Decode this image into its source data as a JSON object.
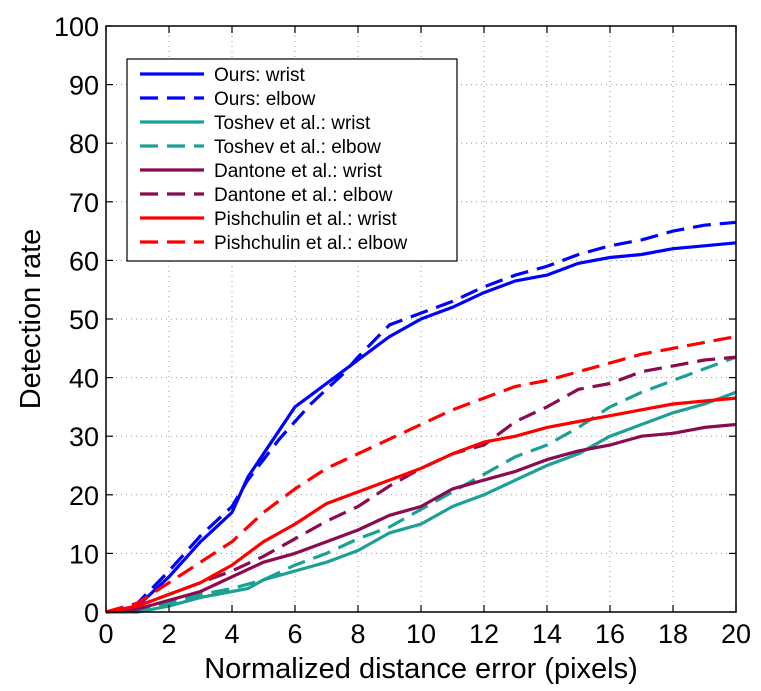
{
  "chart_data": {
    "type": "line",
    "title": "",
    "xlabel": "Normalized distance error (pixels)",
    "ylabel": "Detection rate",
    "xlim": [
      0,
      20
    ],
    "ylim": [
      0,
      100
    ],
    "xticks": [
      0,
      2,
      4,
      6,
      8,
      10,
      12,
      14,
      16,
      18,
      20
    ],
    "yticks": [
      0,
      10,
      20,
      30,
      40,
      50,
      60,
      70,
      80,
      90,
      100
    ],
    "grid": true,
    "legend_position": "top-left",
    "series": [
      {
        "name": "Ours: wrist",
        "color": "#0000ff",
        "dash": "solid",
        "x": [
          0,
          1,
          2,
          3,
          4,
          4.5,
          5,
          5.5,
          6,
          6.5,
          7,
          7.5,
          8,
          9,
          10,
          11,
          12,
          13,
          14,
          15,
          16,
          17,
          18,
          19,
          20
        ],
        "y": [
          0,
          1,
          6,
          12,
          17,
          23,
          27,
          31,
          35,
          37,
          39,
          41,
          43,
          47,
          50,
          52,
          54.5,
          56.5,
          57.5,
          59.5,
          60.5,
          61,
          62,
          62.5,
          63
        ]
      },
      {
        "name": "Ours: elbow",
        "color": "#0000ff",
        "dash": "dashed",
        "x": [
          0,
          1,
          2,
          3,
          4,
          4.5,
          5,
          5.5,
          6,
          6.5,
          7,
          7.5,
          8,
          9,
          10,
          11,
          12,
          13,
          14,
          15,
          16,
          17,
          18,
          19,
          20
        ],
        "y": [
          0,
          1.5,
          7,
          13,
          18,
          22.5,
          26,
          29.5,
          32.5,
          35.5,
          38,
          40.5,
          43.5,
          49,
          51,
          53,
          55.5,
          57.5,
          59,
          61,
          62.5,
          63.5,
          65,
          66,
          66.5
        ]
      },
      {
        "name": "Toshev et al.: wrist",
        "color": "#1ca096",
        "dash": "solid",
        "x": [
          0,
          1,
          2,
          3,
          4,
          4.5,
          5,
          6,
          7,
          8,
          9,
          10,
          11,
          12,
          13,
          14,
          15,
          16,
          17,
          18,
          19,
          20
        ],
        "y": [
          0,
          0,
          1,
          2.5,
          3.5,
          4,
          5.5,
          7,
          8.5,
          10.5,
          13.5,
          15,
          18,
          20,
          22.5,
          25,
          27,
          30,
          32,
          34,
          35.5,
          37.5
        ]
      },
      {
        "name": "Toshev et al.: elbow",
        "color": "#1ca096",
        "dash": "dashed",
        "x": [
          0,
          1,
          2,
          3,
          4,
          5,
          6,
          7,
          8,
          9,
          10,
          11,
          12,
          13,
          14,
          15,
          16,
          17,
          18,
          19,
          20
        ],
        "y": [
          0,
          0,
          1.5,
          3,
          4,
          5.5,
          8,
          10,
          12.5,
          14.5,
          17.5,
          20.5,
          23.5,
          26.5,
          28.5,
          31.5,
          35,
          37.5,
          39.5,
          41.5,
          43.5
        ]
      },
      {
        "name": "Dantone et al.: wrist",
        "color": "#8b0a50",
        "dash": "solid",
        "x": [
          0,
          1,
          2,
          3,
          4,
          5,
          6,
          7,
          8,
          9,
          10,
          11,
          12,
          13,
          14,
          15,
          16,
          17,
          18,
          19,
          20
        ],
        "y": [
          0,
          0.5,
          2,
          3.5,
          6,
          8.5,
          10,
          12,
          14,
          16.5,
          18,
          21,
          22.5,
          24,
          26,
          27.5,
          28.5,
          30,
          30.5,
          31.5,
          32
        ]
      },
      {
        "name": "Dantone et al.: elbow",
        "color": "#8b0a50",
        "dash": "dashed",
        "x": [
          0,
          1,
          2,
          3,
          4,
          5,
          6,
          7,
          8,
          9,
          10,
          11,
          12,
          13,
          14,
          15,
          16,
          17,
          18,
          19,
          20
        ],
        "y": [
          0,
          1,
          3,
          5,
          7,
          9.5,
          12.5,
          15.5,
          18,
          21.5,
          24.5,
          27,
          28.5,
          32.5,
          35,
          38,
          39,
          41,
          42,
          43,
          43.5
        ]
      },
      {
        "name": "Pishchulin et al.: wrist",
        "color": "#ff0000",
        "dash": "solid",
        "x": [
          0,
          1,
          2,
          3,
          4,
          5,
          6,
          7,
          8,
          9,
          10,
          11,
          12,
          13,
          14,
          15,
          16,
          17,
          18,
          19,
          20
        ],
        "y": [
          0,
          1,
          3,
          5,
          8,
          12,
          15,
          18.5,
          20.5,
          22.5,
          24.5,
          27,
          29,
          30,
          31.5,
          32.5,
          33.5,
          34.5,
          35.5,
          36,
          36.5
        ]
      },
      {
        "name": "Pishchulin et al.: elbow",
        "color": "#ff0000",
        "dash": "dashed",
        "x": [
          0,
          1,
          2,
          3,
          4,
          5,
          6,
          7,
          8,
          9,
          10,
          11,
          12,
          13,
          14,
          15,
          16,
          17,
          18,
          19,
          20
        ],
        "y": [
          0,
          1.5,
          5,
          8.5,
          12,
          17,
          21,
          24.5,
          27,
          29.5,
          32,
          34.5,
          36.5,
          38.5,
          39.5,
          41,
          42.5,
          44,
          45,
          46,
          47
        ]
      }
    ]
  }
}
